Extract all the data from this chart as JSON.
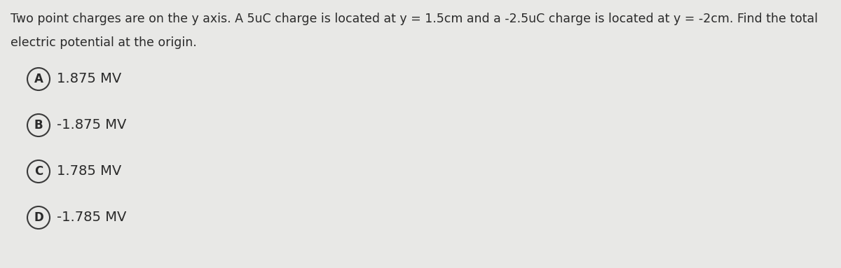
{
  "background_color": "#e8e8e6",
  "question_text_line1": "Two point charges are on the y axis. A 5uC charge is located at y = 1.5cm and a -2.5uC charge is located at y = -2cm. Find the total",
  "question_text_line2": "electric potential at the origin.",
  "options": [
    {
      "label": "A",
      "text": "1.875 MV"
    },
    {
      "label": "B",
      "text": "-1.875 MV"
    },
    {
      "label": "C",
      "text": "1.785 MV"
    },
    {
      "label": "D",
      "text": "-1.785 MV"
    }
  ],
  "text_color": "#2a2a2a",
  "circle_edge_color": "#3a3a3a",
  "question_fontsize": 12.5,
  "option_fontsize": 14,
  "label_fontsize": 12,
  "fig_width": 12.0,
  "fig_height": 3.83,
  "dpi": 100
}
